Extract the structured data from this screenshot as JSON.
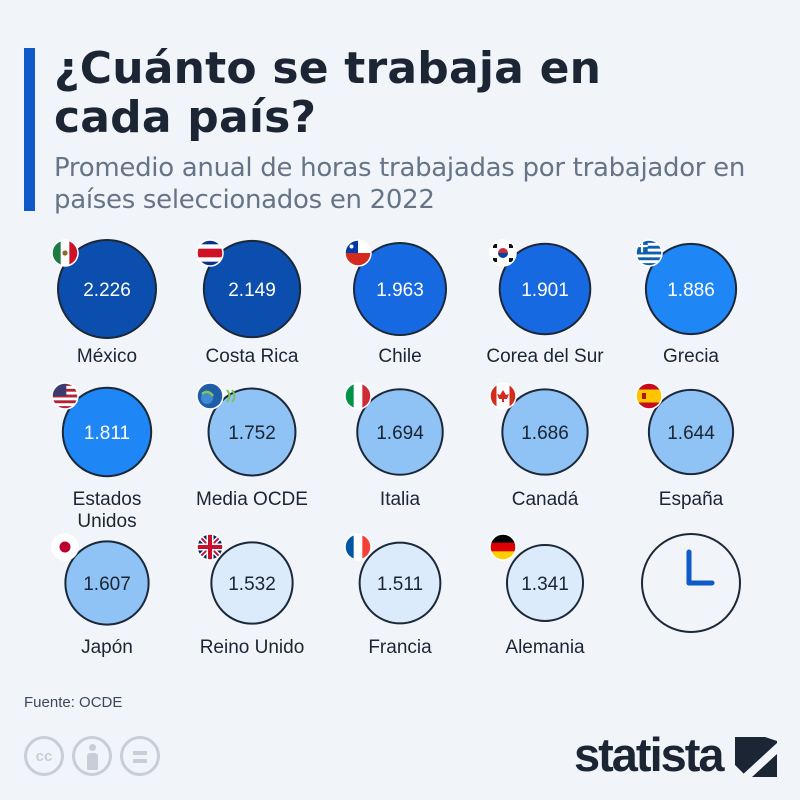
{
  "title": "¿Cuánto se trabaja en cada país?",
  "subtitle": "Promedio anual de horas trabajadas por trabajador en países seleccionados en 2022",
  "source": "Fuente: OCDE",
  "brand": "statista",
  "colors": {
    "accent": "#0d5ac8",
    "title": "#1b2533",
    "subtitle": "#667488",
    "circle_outline": "#1c2838",
    "scale": [
      "#0b4eae",
      "#1769e2",
      "#1f86f6",
      "#8fc2f5",
      "#dcebfb"
    ]
  },
  "chart_data": {
    "type": "bubble",
    "unit": "horas",
    "items": [
      {
        "label": "México",
        "value": 2226,
        "display": "2.226",
        "flag": "mexico-flag"
      },
      {
        "label": "Costa Rica",
        "value": 2149,
        "display": "2.149",
        "flag": "costa-rica-flag"
      },
      {
        "label": "Chile",
        "value": 1963,
        "display": "1.963",
        "flag": "chile-flag"
      },
      {
        "label": "Corea del Sur",
        "value": 1901,
        "display": "1.901",
        "flag": "south-korea-flag"
      },
      {
        "label": "Grecia",
        "value": 1886,
        "display": "1.886",
        "flag": "greece-flag"
      },
      {
        "label": "Estados Unidos",
        "value": 1811,
        "display": "1.811",
        "flag": "usa-flag"
      },
      {
        "label": "Media OCDE",
        "value": 1752,
        "display": "1.752",
        "flag": "oecd-logo"
      },
      {
        "label": "Italia",
        "value": 1694,
        "display": "1.694",
        "flag": "italy-flag"
      },
      {
        "label": "Canadá",
        "value": 1686,
        "display": "1.686",
        "flag": "canada-flag"
      },
      {
        "label": "España",
        "value": 1644,
        "display": "1.644",
        "flag": "spain-flag"
      },
      {
        "label": "Japón",
        "value": 1607,
        "display": "1.607",
        "flag": "japan-flag"
      },
      {
        "label": "Reino Unido",
        "value": 1532,
        "display": "1.532",
        "flag": "uk-flag"
      },
      {
        "label": "Francia",
        "value": 1511,
        "display": "1.511",
        "flag": "france-flag"
      },
      {
        "label": "Alemania",
        "value": 1341,
        "display": "1.341",
        "flag": "germany-flag"
      }
    ],
    "decoration": "clock-icon"
  }
}
